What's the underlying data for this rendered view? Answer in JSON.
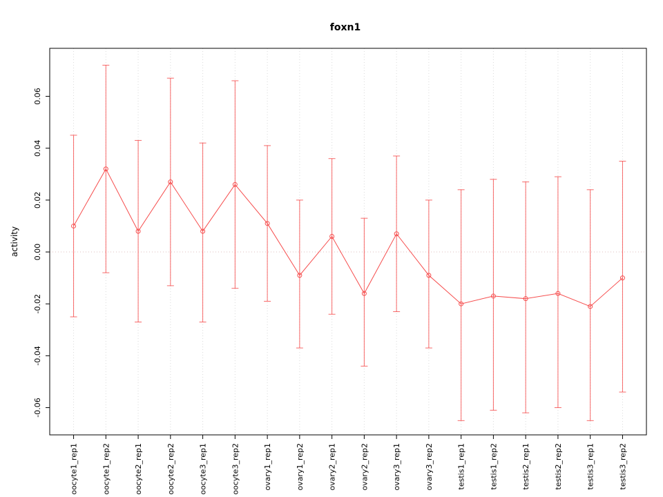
{
  "chart_data": {
    "type": "line",
    "title": "foxn1",
    "ylabel": "activity",
    "xlabel": "",
    "ylim": [
      -0.0705,
      0.0785
    ],
    "yticks": [
      -0.06,
      -0.04,
      -0.02,
      0.0,
      0.02,
      0.04,
      0.06
    ],
    "grid": true,
    "zero_line": true,
    "legend": "none",
    "point_style": "open-circle",
    "categories": [
      "oocyte1_rep1",
      "oocyte1_rep2",
      "oocyte2_rep1",
      "oocyte2_rep2",
      "oocyte3_rep1",
      "oocyte3_rep2",
      "ovary1_rep1",
      "ovary1_rep2",
      "ovary2_rep1",
      "ovary2_rep2",
      "ovary3_rep1",
      "ovary3_rep2",
      "testis1_rep1",
      "testis1_rep2",
      "testis2_rep1",
      "testis2_rep2",
      "testis3_rep1",
      "testis3_rep2"
    ],
    "series": [
      {
        "name": "activity",
        "values": [
          0.01,
          0.032,
          0.008,
          0.027,
          0.008,
          0.026,
          0.011,
          -0.009,
          0.006,
          -0.016,
          0.007,
          -0.009,
          -0.02,
          -0.017,
          -0.018,
          -0.016,
          -0.021,
          -0.01
        ],
        "upper": [
          0.045,
          0.072,
          0.043,
          0.067,
          0.042,
          0.066,
          0.041,
          0.02,
          0.036,
          0.013,
          0.037,
          0.02,
          0.024,
          0.028,
          0.027,
          0.029,
          0.024,
          0.035
        ],
        "lower": [
          -0.025,
          -0.008,
          -0.027,
          -0.013,
          -0.027,
          -0.014,
          -0.019,
          -0.037,
          -0.024,
          -0.044,
          -0.023,
          -0.037,
          -0.065,
          -0.061,
          -0.062,
          -0.06,
          -0.065,
          -0.054
        ]
      }
    ],
    "colors": {
      "series": "#f64d4d",
      "grid": "#d9d9d9",
      "zero_line": "#dfbcbc",
      "axis": "#000000",
      "background": "#ffffff"
    }
  }
}
